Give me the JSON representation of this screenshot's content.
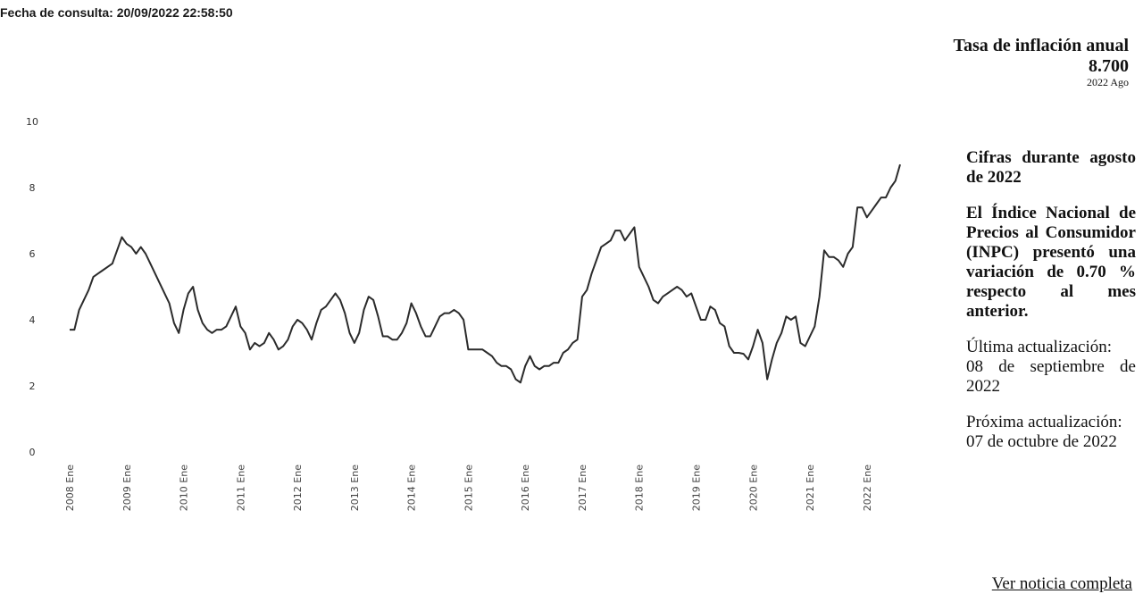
{
  "header": {
    "consult_date": "Fecha de consulta: 20/09/2022 22:58:50"
  },
  "stat": {
    "title": "Tasa de inflación anual",
    "value": "8.700",
    "period": "2022 Ago"
  },
  "side": {
    "intro": "Cifras durante agosto de 2022",
    "body": "El Índice Nacional de Precios al Consumidor (INPC) presentó una variación de 0.70 % respecto al mes anterior.",
    "last_update_label": "Última actualización:",
    "last_update_value": "08 de septiembre de 2022",
    "next_update_label": "Próxima actualización:",
    "next_update_value": "07 de octubre de 2022"
  },
  "link": {
    "label": "Ver noticia completa"
  },
  "chart_data": {
    "type": "line",
    "title": "",
    "xlabel": "",
    "ylabel": "",
    "ylim": [
      0,
      10
    ],
    "yticks": [
      0,
      2,
      4,
      6,
      8,
      10
    ],
    "ytick_labels": [
      "0",
      "2",
      "4",
      "6",
      "8",
      "10"
    ],
    "x_tick_labels": [
      "2008 Ene",
      "2009 Ene",
      "2010 Ene",
      "2011 Ene",
      "2012 Ene",
      "2013 Ene",
      "2014 Ene",
      "2015 Ene",
      "2016 Ene",
      "2017 Ene",
      "2018 Ene",
      "2019 Ene",
      "2020 Ene",
      "2021 Ene",
      "2022 Ene"
    ],
    "x_start": "2008-01",
    "x_end": "2022-08",
    "series": [
      {
        "values": [
          3.7,
          3.7,
          4.3,
          4.6,
          4.9,
          5.3,
          5.4,
          5.5,
          5.6,
          5.7,
          6.1,
          6.5,
          6.3,
          6.2,
          6.0,
          6.2,
          6.0,
          5.7,
          5.4,
          5.1,
          4.8,
          4.5,
          3.9,
          3.6,
          4.3,
          4.8,
          5.0,
          4.3,
          3.9,
          3.7,
          3.6,
          3.7,
          3.7,
          3.8,
          4.1,
          4.4,
          3.8,
          3.6,
          3.1,
          3.3,
          3.2,
          3.3,
          3.6,
          3.4,
          3.1,
          3.2,
          3.4,
          3.8,
          4.0,
          3.9,
          3.7,
          3.4,
          3.9,
          4.3,
          4.4,
          4.6,
          4.8,
          4.6,
          4.2,
          3.6,
          3.3,
          3.6,
          4.3,
          4.7,
          4.6,
          4.1,
          3.5,
          3.5,
          3.4,
          3.4,
          3.6,
          3.9,
          4.5,
          4.2,
          3.8,
          3.5,
          3.5,
          3.8,
          4.1,
          4.2,
          4.2,
          4.3,
          4.2,
          4.0,
          3.1,
          3.1,
          3.1,
          3.1,
          3.0,
          2.9,
          2.7,
          2.6,
          2.6,
          2.5,
          2.2,
          2.1,
          2.6,
          2.9,
          2.6,
          2.5,
          2.6,
          2.6,
          2.7,
          2.7,
          3.0,
          3.1,
          3.3,
          3.4,
          4.7,
          4.9,
          5.4,
          5.8,
          6.2,
          6.3,
          6.4,
          6.7,
          6.7,
          6.4,
          6.6,
          6.8,
          5.6,
          5.3,
          5.0,
          4.6,
          4.5,
          4.7,
          4.8,
          4.9,
          5.0,
          4.9,
          4.7,
          4.8,
          4.4,
          4.0,
          4.0,
          4.4,
          4.3,
          3.9,
          3.8,
          3.2,
          3.0,
          3.0,
          2.97,
          2.8,
          3.2,
          3.7,
          3.3,
          2.2,
          2.8,
          3.3,
          3.6,
          4.1,
          4.0,
          4.1,
          3.3,
          3.2,
          3.5,
          3.8,
          4.7,
          6.1,
          5.9,
          5.9,
          5.8,
          5.6,
          6.0,
          6.2,
          7.4,
          7.4,
          7.1,
          7.3,
          7.5,
          7.7,
          7.7,
          8.0,
          8.2,
          8.7
        ]
      }
    ],
    "grid": false,
    "line_color": "#2b2b2b"
  }
}
